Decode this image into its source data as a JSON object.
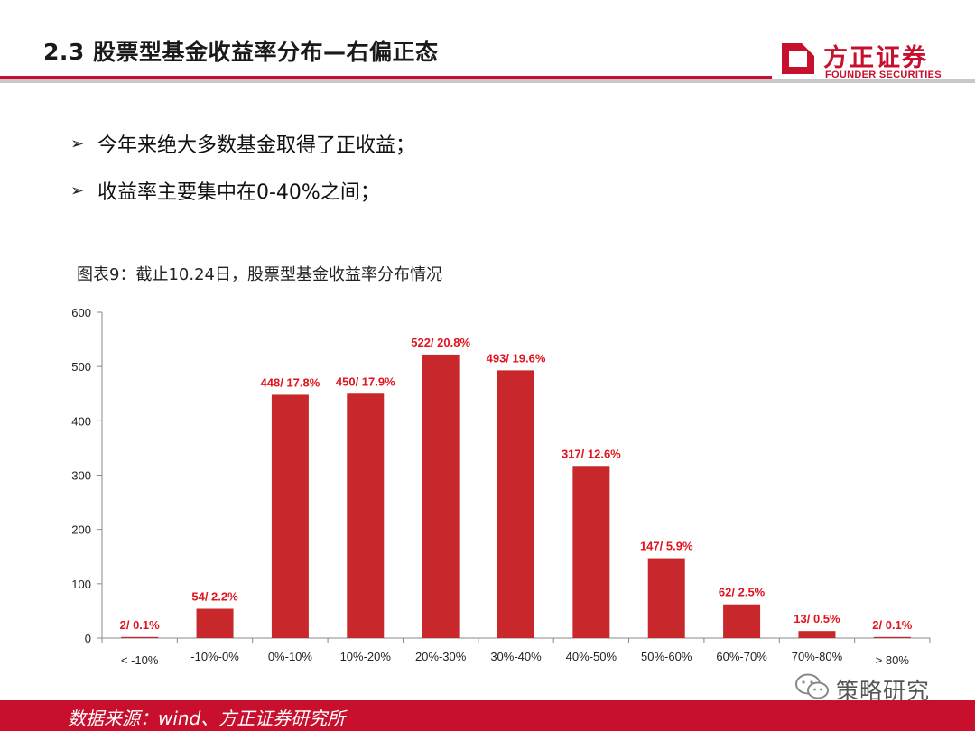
{
  "header": {
    "title": "2.3 股票型基金收益率分布—右偏正态",
    "logo_cn": "方正证券",
    "logo_en": "FOUNDER SECURITIES"
  },
  "bullets": [
    {
      "text": "今年来绝大多数基金取得了正收益；"
    },
    {
      "text": "收益率主要集中在0-40%之间；"
    }
  ],
  "chart_caption": "图表9：截止10.24日，股票型基金收益率分布情况",
  "chart_data": {
    "type": "bar",
    "categories": [
      "< -10%",
      "-10%-0%",
      "0%-10%",
      "10%-20%",
      "20%-30%",
      "30%-40%",
      "40%-50%",
      "50%-60%",
      "60%-70%",
      "70%-80%",
      "> 80%"
    ],
    "values": [
      2,
      54,
      448,
      450,
      522,
      493,
      317,
      147,
      62,
      13,
      2
    ],
    "labels": [
      "2/ 0.1%",
      "54/ 2.2%",
      "448/ 17.8%",
      "450/ 17.9%",
      "522/ 20.8%",
      "493/ 19.6%",
      "317/ 12.6%",
      "147/ 5.9%",
      "62/ 2.5%",
      "13/ 0.5%",
      "2/ 0.1%"
    ],
    "yticks": [
      0,
      100,
      200,
      300,
      400,
      500,
      600
    ],
    "ylim": [
      0,
      600
    ],
    "title": "",
    "xlabel": "",
    "ylabel": "",
    "grid": false,
    "bar_color": "#c8282c",
    "label_color": "#e0141e"
  },
  "footer": {
    "source": "数据来源：wind、方正证券研究所"
  },
  "watermark": {
    "text": "策略研究",
    "icon": "wechat-icon"
  },
  "colors": {
    "brand_red": "#c8102e"
  }
}
